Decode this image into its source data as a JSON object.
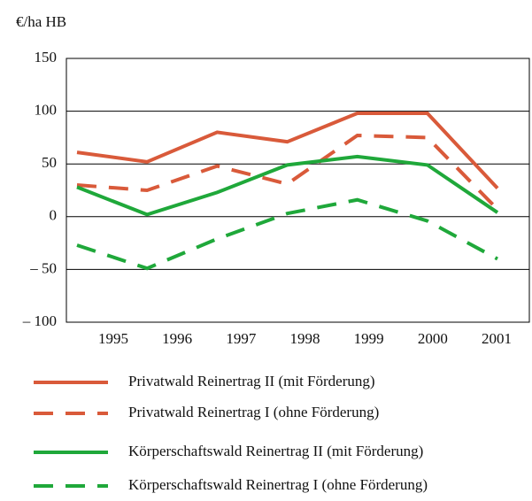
{
  "chart_data": {
    "type": "line",
    "y_unit_label": "€/ha HB",
    "categories": [
      "1995",
      "1996",
      "1997",
      "1998",
      "1999",
      "2000",
      "2001"
    ],
    "ylim": [
      -100,
      150
    ],
    "yticks": [
      {
        "value": -100,
        "label": "– 100"
      },
      {
        "value": -50,
        "label": "– 50"
      },
      0,
      50,
      100,
      150
    ],
    "grid": true,
    "legend": "bottom",
    "series": [
      {
        "name": "Privatwald Reinertrag II (mit Förderung)",
        "color": "#d95a3a",
        "dashed": false,
        "values": [
          61,
          52,
          80,
          71,
          98,
          98,
          27
        ]
      },
      {
        "name": "Privatwald Reinertrag I (ohne Förderung)",
        "color": "#d95a3a",
        "dashed": true,
        "values": [
          30,
          25,
          48,
          31,
          77,
          75,
          7
        ]
      },
      {
        "name": "Körperschaftswald Reinertrag II (mit Förderung)",
        "color": "#1fa83a",
        "dashed": false,
        "values": [
          28,
          2,
          23,
          49,
          57,
          49,
          4
        ]
      },
      {
        "name": "Körperschaftswald Reinertrag I (ohne Förderung)",
        "color": "#1fa83a",
        "dashed": true,
        "values": [
          -27,
          -49,
          -21,
          3,
          16,
          -4,
          -40
        ]
      }
    ]
  }
}
